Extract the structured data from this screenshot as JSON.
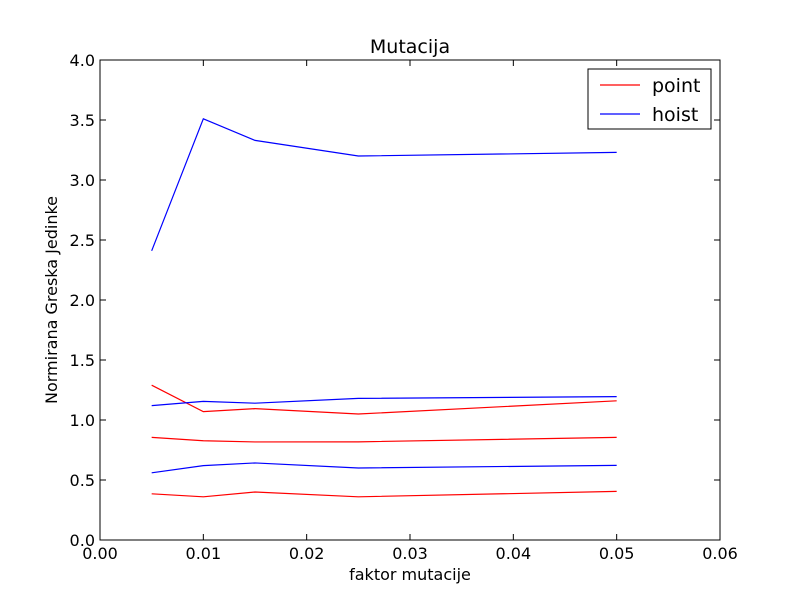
{
  "chart_data": {
    "type": "line",
    "title": "Mutacija",
    "xlabel": "faktor mutacije",
    "ylabel": "Normirana Greska Jedinke",
    "xlim": [
      0.0,
      0.06
    ],
    "ylim": [
      0.0,
      4.0
    ],
    "xticks": [
      "0.00",
      "0.01",
      "0.02",
      "0.03",
      "0.04",
      "0.05",
      "0.06"
    ],
    "yticks": [
      "0.0",
      "0.5",
      "1.0",
      "1.5",
      "2.0",
      "2.5",
      "3.0",
      "3.5",
      "4.0"
    ],
    "grid": false,
    "legend_position": "top-right",
    "legend": [
      {
        "label": "point",
        "color": "#ff0000"
      },
      {
        "label": "hoist",
        "color": "#0000ff"
      }
    ],
    "series": [
      {
        "group": "point",
        "color": "#ff0000",
        "x": [
          0.005,
          0.01,
          0.015,
          0.025,
          0.05
        ],
        "y": [
          1.29,
          1.07,
          1.095,
          1.05,
          1.16
        ]
      },
      {
        "group": "point",
        "color": "#ff0000",
        "x": [
          0.005,
          0.01,
          0.015,
          0.025,
          0.05
        ],
        "y": [
          0.855,
          0.827,
          0.817,
          0.818,
          0.855
        ]
      },
      {
        "group": "point",
        "color": "#ff0000",
        "x": [
          0.005,
          0.01,
          0.015,
          0.025,
          0.05
        ],
        "y": [
          0.385,
          0.36,
          0.4,
          0.36,
          0.405
        ]
      },
      {
        "group": "hoist",
        "color": "#0000ff",
        "x": [
          0.005,
          0.01,
          0.015,
          0.025,
          0.05
        ],
        "y": [
          2.41,
          3.51,
          3.33,
          3.2,
          3.23
        ]
      },
      {
        "group": "hoist",
        "color": "#0000ff",
        "x": [
          0.005,
          0.01,
          0.015,
          0.025,
          0.05
        ],
        "y": [
          1.12,
          1.155,
          1.14,
          1.18,
          1.195
        ]
      },
      {
        "group": "hoist",
        "color": "#0000ff",
        "x": [
          0.005,
          0.01,
          0.015,
          0.025,
          0.05
        ],
        "y": [
          0.56,
          0.62,
          0.642,
          0.6,
          0.622
        ]
      }
    ]
  }
}
